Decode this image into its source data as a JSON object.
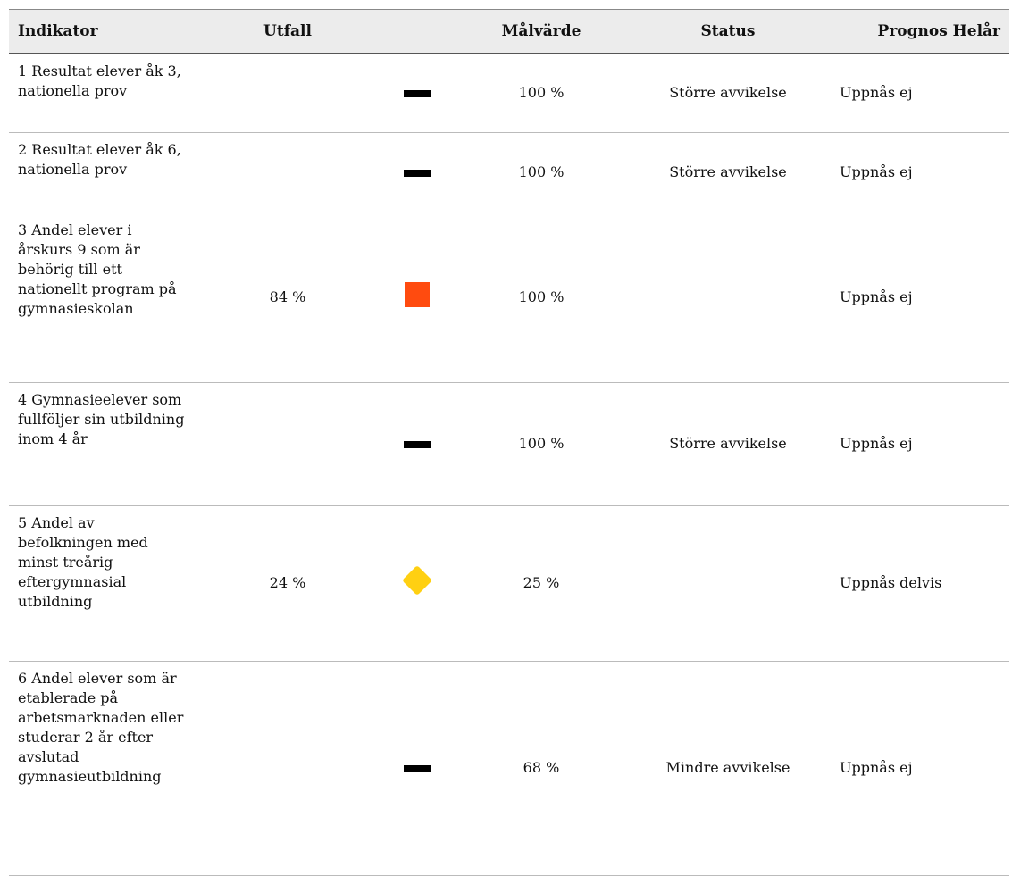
{
  "table": {
    "header": [
      "Indikator",
      "Utfall",
      "Målvärde",
      "Status",
      "Prognos Helår"
    ],
    "rows": [
      [
        "1 Resultat elever åk 3, nationella prov",
        null,
        "100 %",
        "Större avvikelse",
        "Uppnås ej"
      ],
      [
        "2 Resultat elever åk 6, nationella prov",
        null,
        "100 %",
        "Större avvikelse",
        "Uppnås ej"
      ],
      [
        "3 Andel elever i årskurs 9 som är behörig till ett nationellt program på gymnasieskolan",
        "84 %",
        "100 %",
        null,
        "Uppnås ej"
      ],
      [
        "4 Gymnasieelever som fullföljer sin utbildning inom 4 år",
        null,
        "100 %",
        "Större avvikelse",
        "Uppnås ej"
      ],
      [
        "5 Andel av befolkningen med minst treårig eftergymnasial utbildning",
        "24 %",
        "25 %",
        null,
        "Uppnås delvis"
      ],
      [
        "6 Andel elever som är etablerade på arbetsmarknaden eller studerar 2 år efter avslutad gymnasieutbildning",
        null,
        "68 %",
        "Mindre avvikelse",
        "Uppnås ej"
      ]
    ]
  }
}
